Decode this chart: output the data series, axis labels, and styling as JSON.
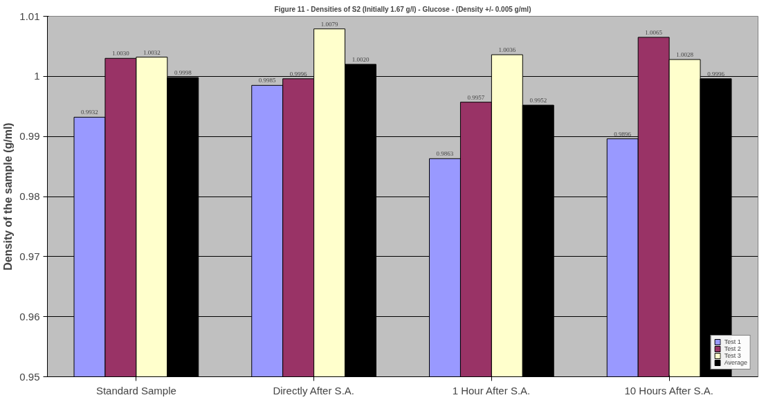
{
  "chart_data": {
    "type": "bar",
    "title": "Figure 11 - Densities of S2 (Initially 1.67 g/l) - Glucose - (Density +/- 0.005 g/ml)",
    "ylabel": "Density of the sample (g/ml)",
    "categories": [
      "Standard Sample",
      "Directly After S.A.",
      "1 Hour After S.A.",
      "10 Hours After S.A."
    ],
    "series": [
      {
        "name": "Test 1",
        "color": "#9999ff",
        "values": [
          0.9932,
          0.9985,
          0.9863,
          0.9896
        ],
        "value_labels": [
          "0.9932",
          "0.9985",
          "0.9863",
          "0.9896"
        ]
      },
      {
        "name": "Test 2",
        "color": "#993366",
        "values": [
          1.003,
          0.9996,
          0.9957,
          1.0065
        ],
        "value_labels": [
          "1.0030",
          "0.9996",
          "0.9957",
          "1.0065"
        ]
      },
      {
        "name": "Test 3",
        "color": "#ffffcc",
        "values": [
          1.0032,
          1.0079,
          1.0036,
          1.0028
        ],
        "value_labels": [
          "1.0032",
          "1.0079",
          "1.0036",
          "1.0028"
        ]
      },
      {
        "name": "Average",
        "color": "#000000",
        "values": [
          0.9998,
          1.002,
          0.9952,
          0.9996
        ],
        "value_labels": [
          "0.9998",
          "1.0020",
          "0.9952",
          "0.9996"
        ]
      }
    ],
    "ylim": [
      0.95,
      1.01
    ],
    "yticks": [
      0.95,
      0.96,
      0.97,
      0.98,
      0.99,
      1,
      1.01
    ],
    "grid": "y",
    "legend": "bottom right"
  }
}
